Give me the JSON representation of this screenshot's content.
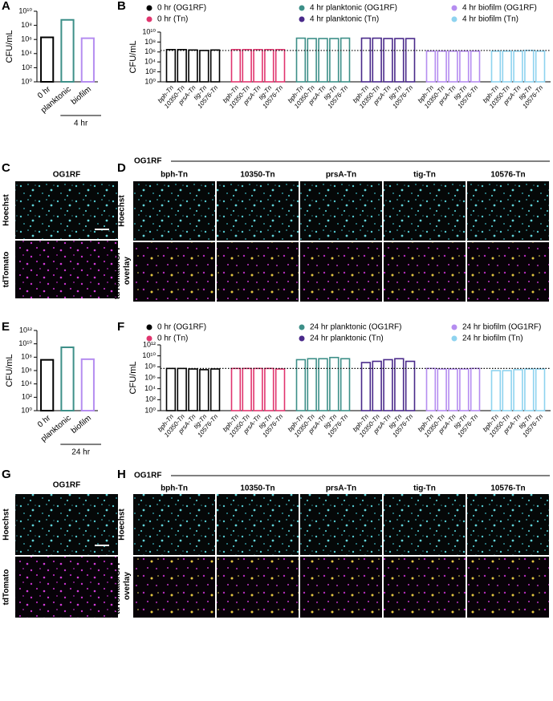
{
  "chart_data": [
    {
      "type": "bar",
      "panel_label": "A",
      "ylabel": "CFU/mL",
      "log_scale": true,
      "categories": [
        "0 hr",
        "planktonic",
        "biofilm"
      ],
      "values": [
        2000000,
        600000000,
        1500000
      ],
      "colors": [
        "#000000",
        "#3d8f88",
        "#b58df0"
      ],
      "group_label": "4 hr",
      "ylim": [
        1,
        10000000000
      ],
      "yticks": [
        {
          "value": 1,
          "label": "10⁰"
        },
        {
          "value": 100,
          "label": "10²"
        },
        {
          "value": 10000,
          "label": "10⁴"
        },
        {
          "value": 1000000,
          "label": "10⁶"
        },
        {
          "value": 100000000,
          "label": "10⁸"
        },
        {
          "value": 10000000000,
          "label": "10¹⁰"
        }
      ]
    },
    {
      "type": "grouped_bar",
      "panel_label": "B",
      "ylabel": "CFU/mL",
      "log_scale": true,
      "categories": [
        "bph-Tn",
        "10350-Tn",
        "prsA-Tn",
        "tig-Tn",
        "10576-Tn"
      ],
      "series": [
        {
          "name": "0 hr (OG1RF)",
          "color": "#000000",
          "values": [
            3000000,
            3000000,
            2500000,
            2000000,
            2500000
          ]
        },
        {
          "name": "0 hr (Tn)",
          "color": "#e0356e",
          "values": [
            3000000,
            3000000,
            3000000,
            3000000,
            3000000
          ]
        },
        {
          "name": "4 hr planktonic (OG1RF)",
          "color": "#3d8f88",
          "values": [
            600000000,
            500000000,
            500000000,
            500000000,
            600000000
          ]
        },
        {
          "name": "4 hr planktonic (Tn)",
          "color": "#4a2a8a",
          "values": [
            600000000,
            600000000,
            500000000,
            500000000,
            500000000
          ]
        },
        {
          "name": "4 hr biofilm (OG1RF)",
          "color": "#b58df0",
          "values": [
            1500000,
            1500000,
            1500000,
            1500000,
            1500000
          ]
        },
        {
          "name": "4 hr biofilm (Tn)",
          "color": "#8ed3ef",
          "values": [
            1500000,
            1500000,
            1500000,
            2000000,
            1500000
          ]
        }
      ],
      "reference_line": 2000000,
      "ylim": [
        1,
        10000000000
      ],
      "yticks": [
        {
          "value": 1,
          "label": "10⁰"
        },
        {
          "value": 100,
          "label": "10²"
        },
        {
          "value": 10000,
          "label": "10⁴"
        },
        {
          "value": 1000000,
          "label": "10⁶"
        },
        {
          "value": 100000000,
          "label": "10⁸"
        },
        {
          "value": 10000000000,
          "label": "10¹⁰"
        }
      ]
    },
    {
      "type": "bar",
      "panel_label": "E",
      "ylabel": "CFU/mL",
      "log_scale": true,
      "categories": [
        "0 hr",
        "planktonic",
        "biofilm"
      ],
      "values": [
        40000000,
        3000000000,
        50000000
      ],
      "colors": [
        "#000000",
        "#3d8f88",
        "#b58df0"
      ],
      "group_label": "24 hr",
      "ylim": [
        1,
        1000000000000
      ],
      "yticks": [
        {
          "value": 1,
          "label": "10⁰"
        },
        {
          "value": 100,
          "label": "10²"
        },
        {
          "value": 10000,
          "label": "10⁴"
        },
        {
          "value": 1000000,
          "label": "10⁶"
        },
        {
          "value": 100000000,
          "label": "10⁸"
        },
        {
          "value": 10000000000,
          "label": "10¹⁰"
        },
        {
          "value": 1000000000000,
          "label": "10¹²"
        }
      ]
    },
    {
      "type": "grouped_bar",
      "panel_label": "F",
      "ylabel": "CFU/mL",
      "log_scale": true,
      "categories": [
        "bph-Tn",
        "10350-Tn",
        "prsA-Tn",
        "tig-Tn",
        "10576-Tn"
      ],
      "series": [
        {
          "name": "0 hr (OG1RF)",
          "color": "#000000",
          "values": [
            50000000,
            50000000,
            40000000,
            30000000,
            40000000
          ]
        },
        {
          "name": "0 hr (Tn)",
          "color": "#e0356e",
          "values": [
            50000000,
            50000000,
            50000000,
            50000000,
            40000000
          ]
        },
        {
          "name": "24 hr planktonic (OG1RF)",
          "color": "#3d8f88",
          "values": [
            2000000000,
            3000000000,
            3000000000,
            5000000000,
            3000000000
          ]
        },
        {
          "name": "24 hr planktonic (Tn)",
          "color": "#4a2a8a",
          "values": [
            600000000,
            1000000000,
            2000000000,
            3000000000,
            1000000000
          ]
        },
        {
          "name": "24 hr biofilm (OG1RF)",
          "color": "#b58df0",
          "values": [
            50000000,
            40000000,
            40000000,
            40000000,
            50000000
          ]
        },
        {
          "name": "24 hr biofilm (Tn)",
          "color": "#8ed3ef",
          "values": [
            20000000,
            20000000,
            30000000,
            40000000,
            40000000
          ]
        }
      ],
      "reference_line": 50000000,
      "ylim": [
        1,
        1000000000000
      ],
      "yticks": [
        {
          "value": 1,
          "label": "10⁰"
        },
        {
          "value": 100,
          "label": "10²"
        },
        {
          "value": 10000,
          "label": "10⁴"
        },
        {
          "value": 1000000,
          "label": "10⁶"
        },
        {
          "value": 100000000,
          "label": "10⁸"
        },
        {
          "value": 10000000000,
          "label": "10¹⁰"
        },
        {
          "value": 1000000000000,
          "label": "10¹²"
        }
      ]
    }
  ],
  "image_panels": [
    {
      "panel_label": "C",
      "header": "OG1RF",
      "rows": [
        "Hoechst",
        "tdTomato"
      ]
    },
    {
      "panel_label": "D",
      "header": "OG1RF",
      "columns": [
        "bph-Tn",
        "10350-Tn",
        "prsA-Tn",
        "tig-Tn",
        "10576-Tn"
      ],
      "rows": [
        "Hoechst",
        "tdTomato/GFP overlay"
      ]
    },
    {
      "panel_label": "G",
      "header": "OG1RF",
      "rows": [
        "Hoechst",
        "tdTomato"
      ]
    },
    {
      "panel_label": "H",
      "header": "OG1RF",
      "columns": [
        "bph-Tn",
        "10350-Tn",
        "prsA-Tn",
        "tig-Tn",
        "10576-Tn"
      ],
      "rows": [
        "Hoechst",
        "tdTomato/GFP overlay"
      ]
    }
  ]
}
